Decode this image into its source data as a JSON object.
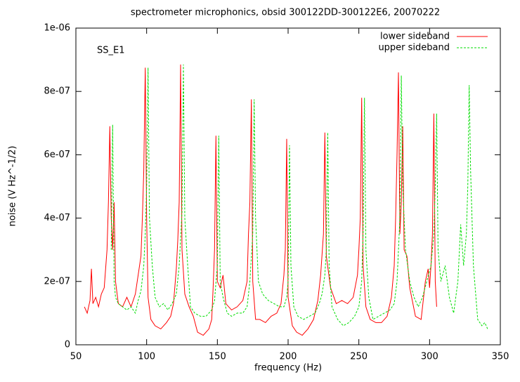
{
  "chart_data": {
    "type": "line",
    "title": "spectrometer microphonics, obsid 300122DD-300122E6, 20070222",
    "x_label": "frequency (Hz)",
    "y_label": "noise (V Hz^-1/2)",
    "annotation": "SS_E1",
    "legend": "top-right",
    "xlim": [
      50,
      350
    ],
    "xticks": [
      50,
      100,
      150,
      200,
      250,
      300,
      350
    ],
    "ylim": [
      0,
      1e-06
    ],
    "yticks": [
      0,
      {
        "value": 2e-07,
        "label": "2e-07"
      },
      {
        "value": 4e-07,
        "label": "4e-07"
      },
      {
        "value": 6e-07,
        "label": "6e-07"
      },
      {
        "value": 8e-07,
        "label": "8e-07"
      },
      {
        "value": 1e-06,
        "label": "1e-06"
      }
    ],
    "series": [
      {
        "name": "lower sideband",
        "color": "#ff0000",
        "dash": "none",
        "x": [
          56,
          58,
          60,
          61,
          62,
          64,
          66,
          68,
          70,
          72,
          73,
          74,
          75,
          76,
          77,
          78,
          80,
          83,
          86,
          89,
          92,
          94,
          96,
          97,
          98,
          99,
          100,
          101,
          103,
          106,
          110,
          114,
          117,
          119,
          121,
          122,
          123,
          124,
          125,
          127,
          130,
          133,
          136,
          140,
          144,
          146,
          147,
          148,
          149,
          150,
          152,
          154,
          156,
          160,
          164,
          168,
          171,
          172,
          173,
          174,
          175,
          177,
          180,
          184,
          188,
          192,
          195,
          197,
          198,
          199,
          200,
          203,
          206,
          210,
          214,
          218,
          221,
          223,
          225,
          226,
          227,
          230,
          234,
          238,
          242,
          246,
          249,
          250,
          251,
          252,
          253,
          255,
          258,
          262,
          266,
          270,
          273,
          275,
          276,
          277,
          278,
          279,
          280,
          281,
          282,
          284,
          286,
          290,
          294,
          297,
          299,
          300,
          301,
          302,
          303,
          304,
          305
        ],
        "values": [
          1.2e-07,
          1e-07,
          1.4e-07,
          2.4e-07,
          1.3e-07,
          1.5e-07,
          1.2e-07,
          1.6e-07,
          1.8e-07,
          3e-07,
          4.5e-07,
          6.9e-07,
          4e-07,
          3e-07,
          4.5e-07,
          2e-07,
          1.3e-07,
          1.2e-07,
          1.5e-07,
          1.2e-07,
          1.6e-07,
          2.2e-07,
          2.8e-07,
          4e-07,
          5.5e-07,
          8.75e-07,
          4e-07,
          1.5e-07,
          8e-08,
          6e-08,
          5e-08,
          7e-08,
          9e-08,
          1.3e-07,
          2.4e-07,
          3.3e-07,
          4.5e-07,
          8.85e-07,
          3e-07,
          1.6e-07,
          1.2e-07,
          9e-08,
          4e-08,
          3e-08,
          5e-08,
          8e-08,
          1.8e-07,
          3e-07,
          6.6e-07,
          2e-07,
          1.8e-07,
          2.2e-07,
          1.3e-07,
          1.1e-07,
          1.2e-07,
          1.4e-07,
          2e-07,
          3.5e-07,
          4.5e-07,
          7.75e-07,
          2e-07,
          8e-08,
          8e-08,
          7e-08,
          9e-08,
          1e-07,
          1.3e-07,
          2.2e-07,
          3e-07,
          6.5e-07,
          1.5e-07,
          6e-08,
          4e-08,
          3e-08,
          5e-08,
          8e-08,
          1.4e-07,
          2.2e-07,
          3.5e-07,
          6.7e-07,
          2.8e-07,
          1.8e-07,
          1.3e-07,
          1.4e-07,
          1.3e-07,
          1.5e-07,
          2.2e-07,
          3e-07,
          4e-07,
          7.8e-07,
          2.5e-07,
          1.2e-07,
          8e-08,
          7e-08,
          7e-08,
          9e-08,
          1.5e-07,
          2.5e-07,
          4e-07,
          6e-07,
          8.6e-07,
          3.5e-07,
          4.5e-07,
          6.9e-07,
          3e-07,
          2.8e-07,
          1.8e-07,
          9e-08,
          8e-08,
          2e-07,
          2.4e-07,
          1.8e-07,
          2.5e-07,
          3.5e-07,
          7.3e-07,
          2e-07,
          1.2e-07
        ]
      },
      {
        "name": "upper sideband",
        "color": "#00dd00",
        "dash": "3,2",
        "x": [
          75,
          76,
          77,
          78,
          80,
          83,
          86,
          89,
          92,
          94,
          96,
          98,
          99,
          100,
          101,
          102,
          104,
          106,
          109,
          112,
          115,
          118,
          121,
          123,
          125,
          126,
          127,
          129,
          131,
          134,
          138,
          142,
          146,
          148,
          150,
          151,
          152,
          154,
          157,
          160,
          164,
          168,
          171,
          173,
          175,
          176,
          177,
          179,
          182,
          186,
          190,
          194,
          197,
          199,
          200,
          201,
          202,
          204,
          207,
          211,
          215,
          219,
          222,
          224,
          226,
          227,
          228,
          229,
          231,
          235,
          239,
          243,
          247,
          250,
          252,
          253,
          254,
          255,
          257,
          260,
          264,
          268,
          272,
          275,
          277,
          279,
          280,
          281,
          283,
          286,
          289,
          292,
          295,
          298,
          301,
          303,
          304,
          305,
          306,
          308,
          311,
          314,
          317,
          320,
          322,
          324,
          326,
          327,
          328,
          329,
          331,
          334,
          337,
          339,
          341
        ],
        "values": [
          3e-07,
          6.95e-07,
          2e-07,
          1.5e-07,
          1.3e-07,
          1.2e-07,
          1.1e-07,
          1.2e-07,
          1e-07,
          1.4e-07,
          1.7e-07,
          2.5e-07,
          3.5e-07,
          5e-07,
          8.75e-07,
          4e-07,
          2.5e-07,
          1.5e-07,
          1.2e-07,
          1.3e-07,
          1.1e-07,
          1.3e-07,
          1.6e-07,
          2.5e-07,
          4.2e-07,
          8.85e-07,
          4e-07,
          2.5e-07,
          1.2e-07,
          1e-07,
          9e-08,
          9e-08,
          1.1e-07,
          1.4e-07,
          2.5e-07,
          6.6e-07,
          2e-07,
          1.5e-07,
          1e-07,
          9e-08,
          1e-07,
          1e-07,
          1.2e-07,
          2e-07,
          3.5e-07,
          7.75e-07,
          4e-07,
          2e-07,
          1.6e-07,
          1.4e-07,
          1.3e-07,
          1.2e-07,
          1.2e-07,
          1.5e-07,
          2e-07,
          6.3e-07,
          2.5e-07,
          1.2e-07,
          9e-08,
          8e-08,
          9e-08,
          1e-07,
          1.3e-07,
          1.6e-07,
          2.2e-07,
          3e-07,
          6.7e-07,
          2.5e-07,
          1.2e-07,
          8e-08,
          6e-08,
          7e-08,
          9e-08,
          1.2e-07,
          2e-07,
          3.5e-07,
          7.8e-07,
          3e-07,
          1.5e-07,
          8e-08,
          9e-08,
          1e-07,
          1.1e-07,
          1.3e-07,
          2e-07,
          4e-07,
          8.5e-07,
          5e-07,
          3e-07,
          2e-07,
          1.5e-07,
          1.2e-07,
          1.5e-07,
          2e-07,
          2.5e-07,
          3.5e-07,
          5e-07,
          7.3e-07,
          3e-07,
          2e-07,
          2.5e-07,
          1.5e-07,
          1e-07,
          2e-07,
          3.8e-07,
          2.5e-07,
          3.5e-07,
          5e-07,
          8.2e-07,
          5.5e-07,
          2.5e-07,
          8e-08,
          6e-08,
          7e-08,
          5e-08
        ]
      }
    ]
  }
}
